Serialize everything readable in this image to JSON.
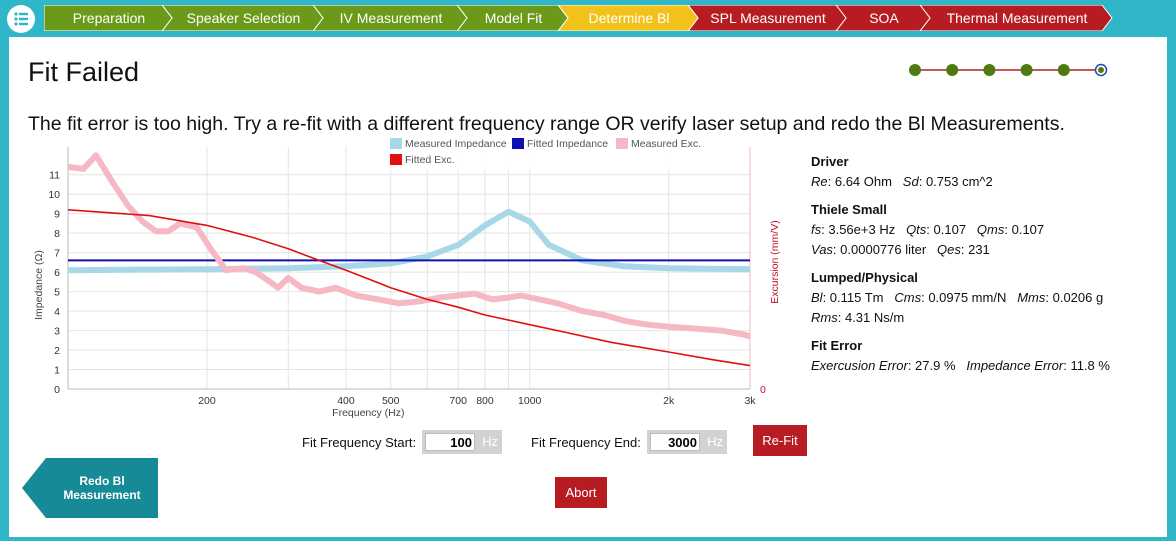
{
  "nav": {
    "menu_icon": "list-menu-icon",
    "steps": [
      {
        "label": "Preparation",
        "status": "done",
        "color": "#6b9a1a"
      },
      {
        "label": "Speaker Selection",
        "status": "done",
        "color": "#6b9a1a"
      },
      {
        "label": "IV Measurement",
        "status": "done",
        "color": "#6b9a1a"
      },
      {
        "label": "Model Fit",
        "status": "done",
        "color": "#6b9a1a"
      },
      {
        "label": "Determine Bl",
        "status": "current",
        "color": "#f2c21a"
      },
      {
        "label": "SPL Measurement",
        "status": "todo",
        "color": "#b81c23"
      },
      {
        "label": "SOA",
        "status": "todo",
        "color": "#b81c23"
      },
      {
        "label": "Thermal Measurement",
        "status": "todo",
        "color": "#b81c23"
      }
    ]
  },
  "page": {
    "title": "Fit Failed",
    "message": "The fit error is too high. Try a re-fit with a different frequency range OR verify laser setup and redo the Bl Measurements.",
    "progress": {
      "total": 6,
      "current": 6,
      "done_color": "#4e7a12",
      "line_color": "#b81c23"
    }
  },
  "chart_data": {
    "type": "line",
    "xscale": "log",
    "xlim": [
      100,
      3000
    ],
    "xticks": [
      "200",
      "400",
      "500",
      "700",
      "800",
      "1000",
      "2k",
      "3k"
    ],
    "xlabel": "Frequency (Hz)",
    "ylabel": "Impedance (Ω)",
    "ylim": [
      0,
      11.5
    ],
    "yticks": [
      "0",
      "1",
      "2",
      "3",
      "4",
      "5",
      "6",
      "7",
      "8",
      "9",
      "10",
      "11"
    ],
    "y2label": "Excursion (mm/V)",
    "y2ticks": [
      "0"
    ],
    "legend": [
      "Measured Impedance",
      "Fitted Impedance",
      "Measured Exc.",
      "Fitted Exc."
    ],
    "legend_placement": "top",
    "series": [
      {
        "name": "Measured Impedance",
        "color": "#a8d8e8",
        "points": [
          [
            100,
            6.1
          ],
          [
            200,
            6.15
          ],
          [
            300,
            6.2
          ],
          [
            400,
            6.3
          ],
          [
            500,
            6.45
          ],
          [
            600,
            6.8
          ],
          [
            700,
            7.4
          ],
          [
            800,
            8.4
          ],
          [
            900,
            9.1
          ],
          [
            1000,
            8.6
          ],
          [
            1100,
            7.4
          ],
          [
            1300,
            6.6
          ],
          [
            1600,
            6.3
          ],
          [
            2000,
            6.2
          ],
          [
            3000,
            6.15
          ]
        ]
      },
      {
        "name": "Fitted Impedance",
        "color": "#1010b0",
        "points": [
          [
            100,
            6.6
          ],
          [
            3000,
            6.6
          ]
        ]
      },
      {
        "name": "Measured Exc.",
        "color": "#f5b8c4",
        "points": [
          [
            100,
            11.4
          ],
          [
            108,
            11.3
          ],
          [
            115,
            12.0
          ],
          [
            125,
            10.6
          ],
          [
            135,
            9.4
          ],
          [
            145,
            8.6
          ],
          [
            155,
            8.1
          ],
          [
            165,
            8.1
          ],
          [
            175,
            8.5
          ],
          [
            190,
            8.3
          ],
          [
            205,
            7.1
          ],
          [
            220,
            6.1
          ],
          [
            240,
            6.2
          ],
          [
            255,
            6.0
          ],
          [
            270,
            5.6
          ],
          [
            285,
            5.2
          ],
          [
            300,
            5.7
          ],
          [
            320,
            5.2
          ],
          [
            350,
            5.0
          ],
          [
            380,
            5.2
          ],
          [
            420,
            4.8
          ],
          [
            470,
            4.6
          ],
          [
            520,
            4.4
          ],
          [
            580,
            4.5
          ],
          [
            640,
            4.7
          ],
          [
            700,
            4.8
          ],
          [
            760,
            4.9
          ],
          [
            830,
            4.6
          ],
          [
            900,
            4.7
          ],
          [
            960,
            4.8
          ],
          [
            1050,
            4.6
          ],
          [
            1150,
            4.4
          ],
          [
            1300,
            4.0
          ],
          [
            1450,
            3.8
          ],
          [
            1600,
            3.5
          ],
          [
            1800,
            3.3
          ],
          [
            2000,
            3.2
          ],
          [
            2300,
            3.1
          ],
          [
            2600,
            3.0
          ],
          [
            2900,
            2.8
          ],
          [
            3000,
            2.7
          ]
        ]
      },
      {
        "name": "Fitted Exc.",
        "color": "#e01010",
        "points": [
          [
            100,
            9.2
          ],
          [
            150,
            8.9
          ],
          [
            200,
            8.4
          ],
          [
            250,
            7.8
          ],
          [
            300,
            7.2
          ],
          [
            350,
            6.6
          ],
          [
            400,
            6.1
          ],
          [
            500,
            5.2
          ],
          [
            600,
            4.6
          ],
          [
            700,
            4.2
          ],
          [
            800,
            3.8
          ],
          [
            1000,
            3.3
          ],
          [
            1200,
            2.9
          ],
          [
            1500,
            2.4
          ],
          [
            2000,
            1.9
          ],
          [
            2500,
            1.5
          ],
          [
            3000,
            1.2
          ]
        ]
      }
    ]
  },
  "params": {
    "driver": {
      "head": "Driver",
      "re_label": "Re",
      "re_value": "6.64 Ohm",
      "sd_label": "Sd",
      "sd_value": "0.753 cm^2"
    },
    "ts": {
      "head": "Thiele Small",
      "fs_label": "fs",
      "fs_value": "3.56e+3 Hz",
      "qts_label": "Qts",
      "qts_value": "0.107",
      "qms_label": "Qms",
      "qms_value": "0.107",
      "vas_label": "Vas",
      "vas_value": "0.0000776 liter",
      "qes_label": "Qes",
      "qes_value": "231"
    },
    "lumped": {
      "head": "Lumped/Physical",
      "bl_label": "Bl",
      "bl_value": "0.115 Tm",
      "cms_label": "Cms",
      "cms_value": "0.0975 mm/N",
      "mms_label": "Mms",
      "mms_value": "0.0206 g",
      "rms_label": "Rms",
      "rms_value": "4.31 Ns/m"
    },
    "fit": {
      "head": "Fit Error",
      "exc_label": "Exercusion Error",
      "exc_value": "27.9 %",
      "imp_label": "Impedance Error",
      "imp_value": "11.8 %"
    }
  },
  "fit_controls": {
    "start_label": "Fit Frequency Start:",
    "start_value": "100",
    "end_label": "Fit Frequency End:",
    "end_value": "3000",
    "unit": "Hz",
    "refit_label": "Re-Fit"
  },
  "actions": {
    "redo_label_line1": "Redo Bl",
    "redo_label_line2": "Measurement",
    "abort_label": "Abort"
  },
  "colors": {
    "accent": "#2fb6c8",
    "danger": "#b81c23",
    "redo": "#168a96"
  }
}
